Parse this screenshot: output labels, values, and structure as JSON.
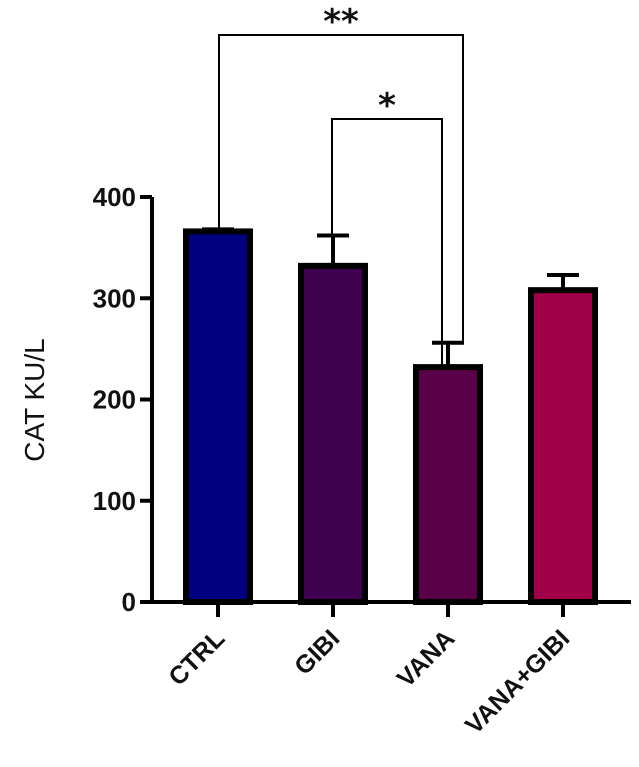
{
  "chart_data": {
    "type": "bar",
    "categories": [
      "CTRL",
      "GIBI",
      "VANA",
      "VANA+GIBI"
    ],
    "values": [
      366,
      332,
      232,
      308
    ],
    "errors": [
      2,
      30,
      24,
      15
    ],
    "bar_colors": [
      "#000080",
      "#400050",
      "#5a0048",
      "#a00048"
    ],
    "ylabel": "CAT KU/L",
    "ylim": [
      0,
      400
    ],
    "yticks": [
      0,
      100,
      200,
      300,
      400
    ],
    "grid": false,
    "legend": "none",
    "significance": [
      {
        "from": 0,
        "to": 2,
        "label": "**"
      },
      {
        "from": 1,
        "to": 2,
        "label": "*"
      }
    ]
  }
}
